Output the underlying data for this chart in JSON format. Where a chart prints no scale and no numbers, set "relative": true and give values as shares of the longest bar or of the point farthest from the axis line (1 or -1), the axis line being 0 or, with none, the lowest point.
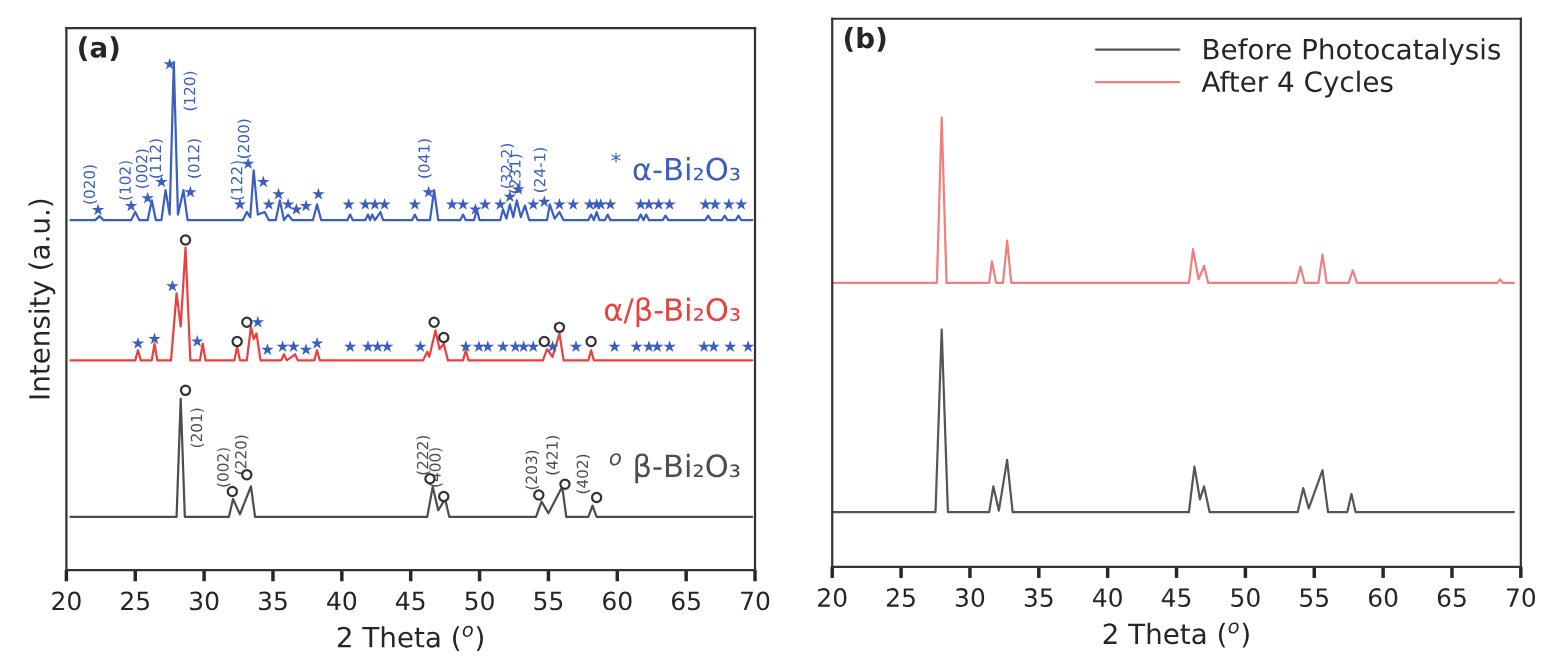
{
  "chart_data": [
    {
      "type": "line",
      "title": "(a)",
      "xlabel": "2 Theta ($^{o}$)",
      "ylabel": "Intensity (a.u.)",
      "relative": true,
      "xlim": [
        20,
        70
      ],
      "xticks": [
        20,
        25,
        30,
        35,
        40,
        45,
        50,
        55,
        60,
        65,
        70
      ],
      "tick_labels": "x",
      "legend": false,
      "series": [
        {
          "name": "$^{*}$ α-Bi₂O₃",
          "color": "#3b5fc0",
          "x": [
            20.3,
            22.1,
            22.4,
            22.7,
            24.7,
            25.0,
            25.3,
            25.9,
            26.2,
            26.5,
            26.9,
            27.2,
            27.5,
            27.8,
            28.1,
            28.5,
            28.8,
            32.8,
            33.1,
            33.35,
            33.6,
            33.9,
            34.4,
            34.7,
            35.2,
            35.5,
            35.8,
            36.1,
            36.4,
            37.9,
            38.2,
            38.5,
            40.4,
            40.6,
            40.8,
            41.7,
            41.9,
            42.05,
            42.2,
            42.4,
            42.8,
            43.0,
            45.1,
            45.3,
            45.5,
            46.4,
            46.7,
            47.0,
            48.6,
            48.8,
            49.0,
            49.6,
            49.8,
            50.0,
            51.5,
            51.7,
            51.95,
            52.2,
            52.45,
            52.7,
            53.0,
            53.3,
            53.6,
            54.9,
            55.1,
            55.45,
            55.8,
            56.1,
            57.9,
            58.1,
            58.3,
            58.5,
            58.7,
            59.1,
            59.3,
            59.5,
            61.5,
            61.7,
            61.9,
            62.1,
            62.3,
            63.3,
            63.5,
            63.7,
            66.4,
            66.6,
            66.8,
            67.6,
            67.8,
            68.0,
            68.6,
            68.8,
            69.0,
            69.8
          ],
          "values": [
            0.689,
            0.689,
            0.697,
            0.689,
            0.689,
            0.705,
            0.689,
            0.689,
            0.728,
            0.689,
            0.689,
            0.748,
            0.7,
            1.0,
            0.7,
            0.748,
            0.689,
            0.689,
            0.705,
            0.695,
            0.787,
            0.7,
            0.705,
            0.689,
            0.689,
            0.728,
            0.689,
            0.7,
            0.689,
            0.689,
            0.72,
            0.689,
            0.689,
            0.7,
            0.689,
            0.689,
            0.7,
            0.689,
            0.7,
            0.689,
            0.705,
            0.689,
            0.689,
            0.7,
            0.689,
            0.689,
            0.748,
            0.689,
            0.689,
            0.7,
            0.689,
            0.689,
            0.71,
            0.689,
            0.689,
            0.71,
            0.692,
            0.72,
            0.695,
            0.728,
            0.695,
            0.718,
            0.689,
            0.689,
            0.72,
            0.692,
            0.705,
            0.689,
            0.689,
            0.7,
            0.689,
            0.705,
            0.689,
            0.689,
            0.7,
            0.689,
            0.689,
            0.7,
            0.689,
            0.7,
            0.689,
            0.689,
            0.698,
            0.689,
            0.689,
            0.698,
            0.689,
            0.689,
            0.698,
            0.689,
            0.689,
            0.698,
            0.689,
            0.689
          ]
        },
        {
          "name": "α/β-Bi₂O₃",
          "color": "#e8413e",
          "x": [
            20.3,
            25.0,
            25.2,
            25.4,
            26.2,
            26.4,
            26.6,
            27.6,
            28.0,
            28.3,
            28.65,
            29.0,
            29.7,
            29.9,
            30.1,
            32.2,
            32.4,
            32.6,
            33.1,
            33.4,
            33.6,
            33.8,
            34.1,
            35.6,
            35.8,
            36.0,
            36.6,
            36.8,
            38.0,
            38.2,
            38.4,
            45.9,
            46.2,
            46.35,
            46.8,
            47.1,
            47.4,
            47.7,
            48.8,
            49.0,
            49.2,
            54.6,
            54.9,
            55.3,
            55.8,
            56.1,
            57.9,
            58.1,
            58.3,
            69.8
          ],
          "values": [
            0.413,
            0.413,
            0.433,
            0.413,
            0.413,
            0.446,
            0.413,
            0.413,
            0.545,
            0.48,
            0.635,
            0.413,
            0.413,
            0.446,
            0.413,
            0.413,
            0.44,
            0.413,
            0.413,
            0.479,
            0.455,
            0.466,
            0.413,
            0.413,
            0.425,
            0.413,
            0.425,
            0.413,
            0.413,
            0.433,
            0.413,
            0.413,
            0.43,
            0.42,
            0.472,
            0.435,
            0.446,
            0.413,
            0.413,
            0.433,
            0.413,
            0.413,
            0.435,
            0.42,
            0.466,
            0.413,
            0.413,
            0.433,
            0.413,
            0.413
          ]
        },
        {
          "name": "$^{o}$ β-Bi₂O₃",
          "color": "#4d4d4d",
          "x": [
            20.3,
            28.0,
            28.3,
            28.6,
            31.8,
            32.1,
            32.6,
            33.4,
            33.7,
            46.2,
            46.6,
            47.0,
            47.5,
            47.8,
            54.1,
            54.5,
            55.0,
            56.0,
            56.3,
            57.9,
            58.2,
            58.5,
            69.8
          ],
          "values": [
            0.105,
            0.105,
            0.337,
            0.105,
            0.105,
            0.14,
            0.11,
            0.165,
            0.105,
            0.105,
            0.164,
            0.118,
            0.14,
            0.105,
            0.105,
            0.135,
            0.112,
            0.164,
            0.105,
            0.105,
            0.127,
            0.105,
            0.105
          ]
        },
        {
          "type": "scatter",
          "marker": "star",
          "color": "#3b5fc0",
          "x": [
            22.3,
            24.7,
            25.9,
            26.9,
            27.5,
            29.0,
            32.6,
            33.2,
            34.3,
            34.7,
            35.4,
            36.1,
            36.7,
            37.4,
            38.3,
            40.5,
            41.7,
            42.4,
            43.1,
            45.3,
            46.3,
            48.0,
            48.8,
            49.7,
            50.4,
            51.5,
            52.2,
            52.8,
            53.9,
            54.7,
            55.8,
            56.8,
            58.0,
            58.5,
            58.8,
            59.5,
            61.7,
            62.3,
            63.0,
            63.8,
            66.4,
            67.1,
            68.1,
            69.0
          ],
          "values": [
            0.709,
            0.717,
            0.732,
            0.764,
            0.996,
            0.744,
            0.72,
            0.8,
            0.764,
            0.72,
            0.74,
            0.72,
            0.71,
            0.717,
            0.74,
            0.72,
            0.72,
            0.72,
            0.72,
            0.72,
            0.744,
            0.72,
            0.72,
            0.71,
            0.72,
            0.72,
            0.735,
            0.75,
            0.72,
            0.725,
            0.72,
            0.72,
            0.72,
            0.72,
            0.72,
            0.72,
            0.72,
            0.72,
            0.72,
            0.72,
            0.72,
            0.72,
            0.72,
            0.72
          ]
        },
        {
          "type": "scatter",
          "marker": "star",
          "color": "#3b5fc0",
          "x": [
            25.2,
            26.4,
            27.7,
            29.5,
            33.9,
            34.6,
            35.7,
            36.5,
            37.4,
            38.2,
            40.6,
            41.9,
            42.6,
            43.3,
            45.7,
            49.0,
            49.95,
            50.6,
            51.7,
            52.6,
            53.2,
            53.9,
            55.3,
            57.0,
            59.8,
            61.4,
            62.3,
            62.9,
            63.8,
            66.3,
            67.0,
            68.2,
            69.5
          ],
          "values": [
            0.446,
            0.455,
            0.559,
            0.45,
            0.488,
            0.434,
            0.44,
            0.44,
            0.434,
            0.446,
            0.44,
            0.44,
            0.44,
            0.44,
            0.44,
            0.44,
            0.44,
            0.44,
            0.44,
            0.44,
            0.44,
            0.44,
            0.44,
            0.44,
            0.44,
            0.44,
            0.44,
            0.44,
            0.44,
            0.44,
            0.44,
            0.44,
            0.44
          ]
        },
        {
          "type": "scatter",
          "marker": "circle",
          "color": "#333333",
          "x": [
            28.65,
            32.4,
            33.1,
            46.7,
            47.4,
            54.7,
            55.8,
            58.1
          ],
          "values": [
            0.65,
            0.45,
            0.488,
            0.488,
            0.458,
            0.45,
            0.478,
            0.45
          ]
        },
        {
          "type": "scatter",
          "marker": "circle",
          "color": "#333333",
          "x": [
            28.65,
            32.05,
            33.1,
            46.4,
            47.4,
            54.3,
            56.2,
            58.5
          ],
          "values": [
            0.354,
            0.155,
            0.188,
            0.18,
            0.145,
            0.148,
            0.169,
            0.143
          ]
        }
      ],
      "annotations": [
        {
          "text": "(020)",
          "x": 22.4,
          "y": 0.697
        },
        {
          "text": "(102)",
          "x": 25.0,
          "y": 0.705
        },
        {
          "text": "(002)",
          "x": 26.2,
          "y": 0.728
        },
        {
          "text": "(112)",
          "x": 27.2,
          "y": 0.748
        },
        {
          "text": "(120)",
          "x": 27.8,
          "y": 1.0
        },
        {
          "text": "(012)",
          "x": 28.5,
          "y": 0.748
        },
        {
          "text": "(122)",
          "x": 33.1,
          "y": 0.705
        },
        {
          "text": "(200)",
          "x": 33.6,
          "y": 0.787
        },
        {
          "text": "(041)",
          "x": 46.7,
          "y": 0.748
        },
        {
          "text": "(32-2)",
          "x": 52.7,
          "y": 0.728
        },
        {
          "text": "(231)",
          "x": 53.3,
          "y": 0.718
        },
        {
          "text": "(24-1)",
          "x": 55.1,
          "y": 0.72
        },
        {
          "text": "(201)",
          "x": 28.3,
          "y": 0.337
        },
        {
          "text": "(002)",
          "x": 32.1,
          "y": 0.14
        },
        {
          "text": "(220)",
          "x": 33.4,
          "y": 0.165
        },
        {
          "text": "(222)",
          "x": 46.6,
          "y": 0.164
        },
        {
          "text": "(400)",
          "x": 47.5,
          "y": 0.14
        },
        {
          "text": "(203)",
          "x": 54.5,
          "y": 0.135
        },
        {
          "text": "(421)",
          "x": 56.0,
          "y": 0.164
        },
        {
          "text": "(402)",
          "x": 58.2,
          "y": 0.127
        }
      ]
    },
    {
      "type": "line",
      "title": "(b)",
      "xlabel": "2 Theta ($^{o}$)",
      "relative": true,
      "xlim": [
        20,
        70
      ],
      "xticks": [
        20,
        25,
        30,
        35,
        40,
        45,
        50,
        55,
        60,
        65,
        70
      ],
      "tick_labels": "x",
      "legend": "top right",
      "series": [
        {
          "name": "Before Photocatalysis",
          "color": "#555555",
          "x": [
            20.0,
            27.5,
            27.95,
            28.4,
            31.4,
            31.7,
            32.1,
            32.7,
            33.1,
            45.9,
            46.3,
            46.7,
            47.0,
            47.4,
            53.8,
            54.2,
            54.6,
            55.6,
            56.0,
            57.4,
            57.7,
            58.0,
            69.5
          ],
          "values": [
            0.122,
            0.122,
            0.528,
            0.122,
            0.122,
            0.179,
            0.125,
            0.238,
            0.122,
            0.122,
            0.223,
            0.15,
            0.179,
            0.122,
            0.122,
            0.175,
            0.13,
            0.215,
            0.122,
            0.122,
            0.162,
            0.122,
            0.122
          ]
        },
        {
          "name": "After 4 Cycles",
          "color": "#f07f7f",
          "x": [
            20.0,
            27.6,
            27.95,
            28.3,
            31.4,
            31.6,
            31.9,
            32.4,
            32.7,
            33.0,
            45.9,
            46.2,
            46.6,
            47.0,
            47.3,
            53.7,
            54.0,
            54.3,
            55.3,
            55.6,
            55.9,
            57.5,
            57.8,
            58.1,
            68.3,
            68.5,
            68.7,
            69.5
          ],
          "values": [
            0.632,
            0.632,
            1.0,
            0.632,
            0.632,
            0.68,
            0.632,
            0.632,
            0.726,
            0.632,
            0.632,
            0.707,
            0.64,
            0.67,
            0.632,
            0.632,
            0.668,
            0.632,
            0.632,
            0.695,
            0.632,
            0.632,
            0.66,
            0.632,
            0.632,
            0.64,
            0.632,
            0.632
          ]
        }
      ]
    }
  ]
}
